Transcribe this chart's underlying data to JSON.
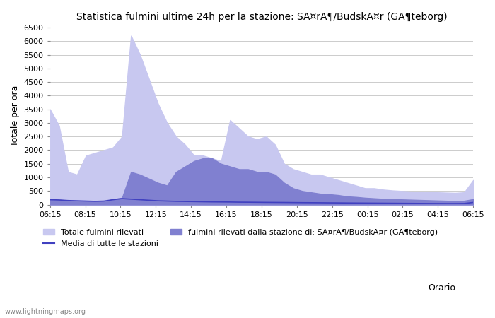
{
  "title": "Statistica fulmini ultime 24h per la stazione: SÃ¤rÃ¶/BudskÃ¤r (GÃ¶teborg)",
  "ylabel": "Totale per ora",
  "xlabel": "Orario",
  "x_labels": [
    "06:15",
    "08:15",
    "10:15",
    "12:15",
    "14:15",
    "16:15",
    "18:15",
    "20:15",
    "22:15",
    "00:15",
    "02:15",
    "04:15",
    "06:15"
  ],
  "legend_total": "Totale fulmini rilevati",
  "legend_station": "fulmini rilevati dalla stazione di: SÃ¤rÃ¶/BudskÃ¤r (GÃ¶teborg)",
  "legend_media": "Media di tutte le stazioni",
  "watermark": "www.lightningmaps.org",
  "ylim": [
    0,
    6500
  ],
  "color_total": "#c8c8f0",
  "color_station": "#8080d0",
  "color_media": "#4040c0",
  "background_color": "#ffffff",
  "grid_color": "#cccccc",
  "total_values": [
    3500,
    2900,
    1200,
    1100,
    1800,
    1900,
    2000,
    2100,
    2500,
    6200,
    5500,
    4600,
    3700,
    3000,
    2500,
    2200,
    1800,
    1800,
    1700,
    1600,
    3100,
    2800,
    2500,
    2400,
    2500,
    2200,
    1500,
    1300,
    1200,
    1100,
    1100,
    1000,
    900,
    800,
    700,
    600,
    600,
    550,
    520,
    500,
    480,
    470,
    460,
    450,
    440,
    430,
    450,
    900
  ],
  "station_values": [
    200,
    180,
    150,
    130,
    120,
    110,
    120,
    200,
    250,
    1200,
    1100,
    950,
    800,
    700,
    1200,
    1400,
    1600,
    1700,
    1700,
    1500,
    1400,
    1300,
    1300,
    1200,
    1200,
    1100,
    800,
    600,
    500,
    450,
    400,
    380,
    350,
    300,
    280,
    250,
    230,
    210,
    200,
    190,
    180,
    170,
    160,
    150,
    140,
    130,
    140,
    200
  ],
  "media_values": [
    180,
    170,
    150,
    140,
    130,
    120,
    130,
    180,
    220,
    200,
    180,
    160,
    140,
    130,
    120,
    115,
    110,
    105,
    100,
    98,
    95,
    90,
    88,
    85,
    82,
    80,
    78,
    75,
    72,
    70,
    68,
    65,
    63,
    60,
    58,
    56,
    54,
    52,
    50,
    48,
    46,
    44,
    42,
    41,
    40,
    40,
    42,
    80
  ]
}
